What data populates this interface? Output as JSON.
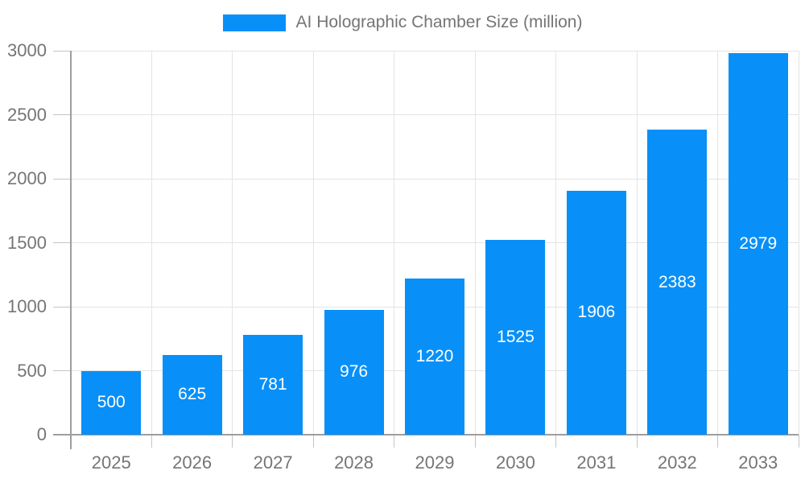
{
  "chart_data": {
    "type": "bar",
    "title": "AI Holographic Chamber Size (million)",
    "legend": [
      "AI Holographic Chamber Size (million)"
    ],
    "legend_position": "top-center",
    "categories": [
      "2025",
      "2026",
      "2027",
      "2028",
      "2029",
      "2030",
      "2031",
      "2032",
      "2033"
    ],
    "series": [
      {
        "name": "AI Holographic Chamber Size (million)",
        "values": [
          500,
          625,
          781,
          976,
          1220,
          1525,
          1906,
          2383,
          2979
        ]
      }
    ],
    "xlabel": "",
    "ylabel": "",
    "ylim": [
      0,
      3000
    ],
    "y_ticks": [
      0,
      500,
      1000,
      1500,
      2000,
      2500,
      3000
    ],
    "grid": "on",
    "value_label_style": "inside-center-white",
    "colors": {
      "bar": "#0890f8",
      "grid": "#e4e4e4",
      "axis": "#9e9e9e",
      "tick": "#c4c4c4",
      "text": "#757575",
      "value_label": "#ffffff",
      "background": "#ffffff"
    }
  }
}
